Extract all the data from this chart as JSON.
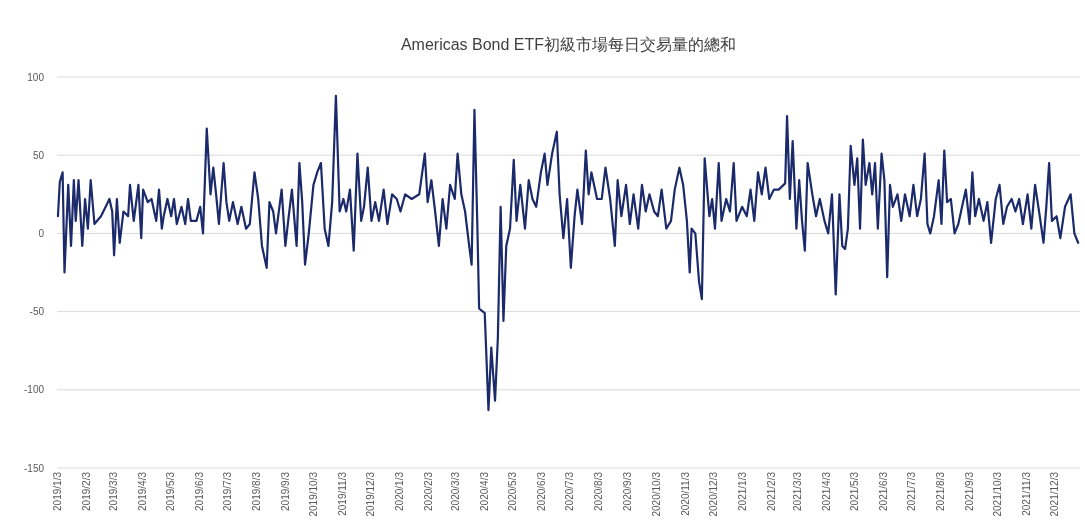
{
  "chart_data": {
    "type": "line",
    "title": "Americas Bond ETF初級市場每日交易量的總和",
    "grid": "y",
    "xlim": [
      "2019-01-02",
      "2021-12-30"
    ],
    "xticks": [
      {
        "value": "2019-01-03",
        "label": "2019/1/3"
      },
      {
        "value": "2019-02-03",
        "label": "2019/2/3"
      },
      {
        "value": "2019-03-03",
        "label": "2019/3/3"
      },
      {
        "value": "2019-04-03",
        "label": "2019/4/3"
      },
      {
        "value": "2019-05-03",
        "label": "2019/5/3"
      },
      {
        "value": "2019-06-03",
        "label": "2019/6/3"
      },
      {
        "value": "2019-07-03",
        "label": "2019/7/3"
      },
      {
        "value": "2019-08-03",
        "label": "2019/8/3"
      },
      {
        "value": "2019-09-03",
        "label": "2019/9/3"
      },
      {
        "value": "2019-10-03",
        "label": "2019/10/3"
      },
      {
        "value": "2019-11-03",
        "label": "2019/11/3"
      },
      {
        "value": "2019-12-03",
        "label": "2019/12/3"
      },
      {
        "value": "2020-01-03",
        "label": "2020/1/3"
      },
      {
        "value": "2020-02-03",
        "label": "2020/2/3"
      },
      {
        "value": "2020-03-03",
        "label": "2020/3/3"
      },
      {
        "value": "2020-04-03",
        "label": "2020/4/3"
      },
      {
        "value": "2020-05-03",
        "label": "2020/5/3"
      },
      {
        "value": "2020-06-03",
        "label": "2020/6/3"
      },
      {
        "value": "2020-07-03",
        "label": "2020/7/3"
      },
      {
        "value": "2020-08-03",
        "label": "2020/8/3"
      },
      {
        "value": "2020-09-03",
        "label": "2020/9/3"
      },
      {
        "value": "2020-10-03",
        "label": "2020/10/3"
      },
      {
        "value": "2020-11-03",
        "label": "2020/11/3"
      },
      {
        "value": "2020-12-03",
        "label": "2020/12/3"
      },
      {
        "value": "2021-01-03",
        "label": "2021/1/3"
      },
      {
        "value": "2021-02-03",
        "label": "2021/2/3"
      },
      {
        "value": "2021-03-03",
        "label": "2021/3/3"
      },
      {
        "value": "2021-04-03",
        "label": "2021/4/3"
      },
      {
        "value": "2021-05-03",
        "label": "2021/5/3"
      },
      {
        "value": "2021-06-03",
        "label": "2021/6/3"
      },
      {
        "value": "2021-07-03",
        "label": "2021/7/3"
      },
      {
        "value": "2021-08-03",
        "label": "2021/8/3"
      },
      {
        "value": "2021-09-03",
        "label": "2021/9/3"
      },
      {
        "value": "2021-10-03",
        "label": "2021/10/3"
      },
      {
        "value": "2021-11-03",
        "label": "2021/11/3"
      },
      {
        "value": "2021-12-03",
        "label": "2021/12/3"
      }
    ],
    "ylim": [
      -150,
      100
    ],
    "yticks": [
      -150,
      -100,
      -50,
      0,
      50,
      100
    ],
    "x": [
      "2019-01-03",
      "2019-01-05",
      "2019-01-08",
      "2019-01-10",
      "2019-01-14",
      "2019-01-17",
      "2019-01-20",
      "2019-01-22",
      "2019-01-25",
      "2019-01-29",
      "2019-02-01",
      "2019-02-04",
      "2019-02-07",
      "2019-02-11",
      "2019-02-18",
      "2019-02-23",
      "2019-02-27",
      "2019-03-02",
      "2019-03-04",
      "2019-03-07",
      "2019-03-10",
      "2019-03-14",
      "2019-03-19",
      "2019-03-21",
      "2019-03-25",
      "2019-03-30",
      "2019-04-02",
      "2019-04-04",
      "2019-04-09",
      "2019-04-13",
      "2019-04-18",
      "2019-04-21",
      "2019-04-24",
      "2019-04-26",
      "2019-04-30",
      "2019-05-04",
      "2019-05-07",
      "2019-05-10",
      "2019-05-15",
      "2019-05-19",
      "2019-05-22",
      "2019-05-25",
      "2019-05-31",
      "2019-06-04",
      "2019-06-07",
      "2019-06-11",
      "2019-06-15",
      "2019-06-18",
      "2019-06-21",
      "2019-06-24",
      "2019-06-29",
      "2019-07-02",
      "2019-07-05",
      "2019-07-09",
      "2019-07-14",
      "2019-07-18",
      "2019-07-23",
      "2019-07-27",
      "2019-08-01",
      "2019-08-05",
      "2019-08-09",
      "2019-08-14",
      "2019-08-17",
      "2019-08-21",
      "2019-08-24",
      "2019-08-30",
      "2019-09-03",
      "2019-09-06",
      "2019-09-10",
      "2019-09-15",
      "2019-09-18",
      "2019-09-21",
      "2019-09-24",
      "2019-09-28",
      "2019-10-03",
      "2019-10-07",
      "2019-10-11",
      "2019-10-15",
      "2019-10-19",
      "2019-10-23",
      "2019-10-27",
      "2019-10-31",
      "2019-11-04",
      "2019-11-07",
      "2019-11-11",
      "2019-11-15",
      "2019-11-19",
      "2019-11-23",
      "2019-11-26",
      "2019-11-30",
      "2019-12-04",
      "2019-12-08",
      "2019-12-12",
      "2019-12-17",
      "2019-12-21",
      "2019-12-26",
      "2019-12-31",
      "2020-01-04",
      "2020-01-09",
      "2020-01-16",
      "2020-01-24",
      "2020-01-30",
      "2020-02-02",
      "2020-02-06",
      "2020-02-10",
      "2020-02-14",
      "2020-02-18",
      "2020-02-22",
      "2020-02-26",
      "2020-03-02",
      "2020-03-05",
      "2020-03-09",
      "2020-03-13",
      "2020-03-17",
      "2020-03-20",
      "2020-03-23",
      "2020-03-26",
      "2020-03-28",
      "2020-04-03",
      "2020-04-07",
      "2020-04-10",
      "2020-04-14",
      "2020-04-17",
      "2020-04-20",
      "2020-04-23",
      "2020-04-26",
      "2020-04-30",
      "2020-05-04",
      "2020-05-07",
      "2020-05-11",
      "2020-05-16",
      "2020-05-20",
      "2020-05-24",
      "2020-05-28",
      "2020-06-02",
      "2020-06-06",
      "2020-06-09",
      "2020-06-14",
      "2020-06-19",
      "2020-06-22",
      "2020-06-26",
      "2020-06-30",
      "2020-07-04",
      "2020-07-08",
      "2020-07-11",
      "2020-07-16",
      "2020-07-20",
      "2020-07-23",
      "2020-07-26",
      "2020-08-01",
      "2020-08-06",
      "2020-08-10",
      "2020-08-15",
      "2020-08-20",
      "2020-08-23",
      "2020-08-27",
      "2020-09-01",
      "2020-09-05",
      "2020-09-09",
      "2020-09-14",
      "2020-09-18",
      "2020-09-22",
      "2020-09-26",
      "2020-10-01",
      "2020-10-05",
      "2020-10-09",
      "2020-10-14",
      "2020-10-19",
      "2020-10-23",
      "2020-10-28",
      "2020-11-01",
      "2020-11-05",
      "2020-11-08",
      "2020-11-10",
      "2020-11-14",
      "2020-11-18",
      "2020-11-21",
      "2020-11-24",
      "2020-11-29",
      "2020-12-02",
      "2020-12-05",
      "2020-12-09",
      "2020-12-12",
      "2020-12-17",
      "2020-12-21",
      "2020-12-25",
      "2020-12-28",
      "2021-01-03",
      "2021-01-08",
      "2021-01-12",
      "2021-01-16",
      "2021-01-20",
      "2021-01-24",
      "2021-01-28",
      "2021-02-01",
      "2021-02-06",
      "2021-02-11",
      "2021-02-18",
      "2021-02-20",
      "2021-02-23",
      "2021-02-26",
      "2021-03-02",
      "2021-03-05",
      "2021-03-08",
      "2021-03-11",
      "2021-03-14",
      "2021-03-19",
      "2021-03-23",
      "2021-03-27",
      "2021-04-01",
      "2021-04-05",
      "2021-04-09",
      "2021-04-13",
      "2021-04-17",
      "2021-04-20",
      "2021-04-23",
      "2021-04-26",
      "2021-04-29",
      "2021-05-03",
      "2021-05-06",
      "2021-05-09",
      "2021-05-12",
      "2021-05-15",
      "2021-05-19",
      "2021-05-22",
      "2021-05-25",
      "2021-05-28",
      "2021-06-01",
      "2021-06-04",
      "2021-06-07",
      "2021-06-10",
      "2021-06-13",
      "2021-06-18",
      "2021-06-22",
      "2021-06-26",
      "2021-07-01",
      "2021-07-05",
      "2021-07-09",
      "2021-07-13",
      "2021-07-17",
      "2021-07-20",
      "2021-07-23",
      "2021-07-27",
      "2021-08-01",
      "2021-08-04",
      "2021-08-07",
      "2021-08-10",
      "2021-08-14",
      "2021-08-18",
      "2021-08-22",
      "2021-08-26",
      "2021-08-30",
      "2021-09-03",
      "2021-09-06",
      "2021-09-09",
      "2021-09-13",
      "2021-09-18",
      "2021-09-22",
      "2021-09-26",
      "2021-10-01",
      "2021-10-05",
      "2021-10-09",
      "2021-10-13",
      "2021-10-18",
      "2021-10-22",
      "2021-10-26",
      "2021-10-30",
      "2021-11-04",
      "2021-11-08",
      "2021-11-12",
      "2021-11-17",
      "2021-11-21",
      "2021-11-24",
      "2021-11-27",
      "2021-11-30",
      "2021-12-05",
      "2021-12-09",
      "2021-12-14",
      "2021-12-20",
      "2021-12-24",
      "2021-12-28"
    ],
    "series": [
      {
        "color": "#1b2a6b",
        "values": [
          11,
          33,
          39,
          -25,
          31,
          -8,
          34,
          8,
          34,
          -8,
          22,
          3,
          34,
          6,
          11,
          17,
          22,
          14,
          -14,
          22,
          -6,
          14,
          11,
          31,
          8,
          31,
          -3,
          28,
          20,
          22,
          8,
          28,
          3,
          11,
          22,
          11,
          22,
          6,
          17,
          6,
          22,
          8,
          8,
          17,
          0,
          67,
          25,
          42,
          25,
          6,
          45,
          20,
          8,
          20,
          6,
          17,
          3,
          6,
          39,
          22,
          -8,
          -22,
          20,
          14,
          0,
          28,
          -8,
          8,
          28,
          -8,
          45,
          20,
          -20,
          0,
          31,
          39,
          45,
          3,
          -8,
          20,
          88,
          14,
          22,
          14,
          28,
          -11,
          51,
          8,
          17,
          42,
          8,
          20,
          8,
          28,
          6,
          25,
          22,
          14,
          25,
          22,
          25,
          51,
          20,
          34,
          14,
          -8,
          22,
          3,
          31,
          22,
          51,
          25,
          14,
          -6,
          -20,
          79,
          8,
          -48,
          -51,
          -113,
          -73,
          -107,
          -67,
          17,
          -56,
          -8,
          3,
          47,
          8,
          31,
          3,
          34,
          22,
          17,
          39,
          51,
          31,
          51,
          65,
          25,
          -3,
          22,
          -22,
          11,
          28,
          6,
          53,
          25,
          39,
          22,
          22,
          42,
          22,
          -8,
          34,
          11,
          31,
          6,
          25,
          3,
          31,
          14,
          25,
          14,
          11,
          28,
          3,
          8,
          28,
          42,
          31,
          8,
          -25,
          3,
          0,
          -31,
          -42,
          48,
          11,
          22,
          3,
          45,
          8,
          22,
          14,
          45,
          8,
          17,
          11,
          28,
          8,
          39,
          25,
          42,
          22,
          28,
          28,
          32,
          75,
          22,
          59,
          3,
          34,
          8,
          -11,
          45,
          25,
          11,
          22,
          8,
          0,
          25,
          -39,
          25,
          -8,
          -10,
          3,
          56,
          31,
          48,
          3,
          60,
          31,
          45,
          25,
          45,
          3,
          51,
          34,
          -28,
          31,
          17,
          25,
          8,
          25,
          11,
          31,
          11,
          22,
          51,
          6,
          0,
          11,
          34,
          6,
          53,
          20,
          22,
          0,
          6,
          17,
          28,
          6,
          39,
          11,
          22,
          8,
          20,
          -6,
          22,
          31,
          6,
          17,
          22,
          14,
          22,
          6,
          25,
          3,
          31,
          11,
          -6,
          17,
          45,
          8,
          11,
          -3,
          17,
          25,
          0,
          -6
        ]
      }
    ]
  }
}
